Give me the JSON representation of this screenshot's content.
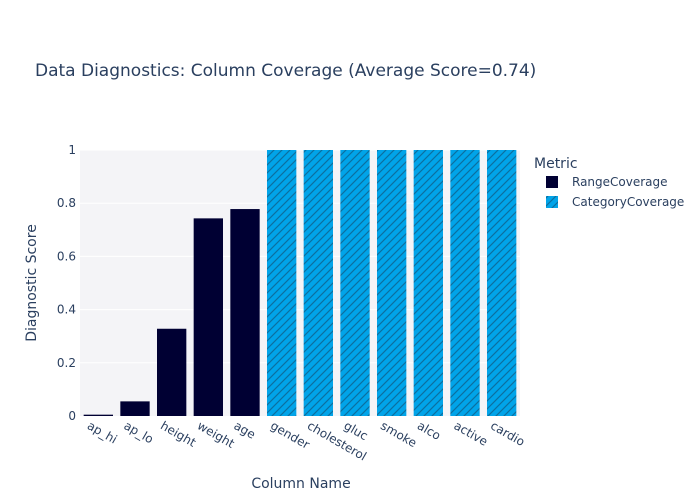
{
  "chart_data": {
    "type": "bar",
    "title": "Data Diagnostics: Column Coverage (Average Score=0.74)",
    "xlabel": "Column Name",
    "ylabel": "Diagnostic Score",
    "ylim": [
      0,
      1
    ],
    "yticks": [
      0,
      0.2,
      0.4,
      0.6,
      0.8,
      1
    ],
    "grid": true,
    "legend_title": "Metric",
    "legend_position": "right",
    "categories": [
      "ap_hi",
      "ap_lo",
      "height",
      "weight",
      "age",
      "gender",
      "cholesterol",
      "gluc",
      "smoke",
      "alco",
      "active",
      "cardio"
    ],
    "series": [
      {
        "name": "RangeCoverage",
        "color": "#000033",
        "pattern": "none",
        "values": [
          0.005,
          0.055,
          0.328,
          0.743,
          0.778,
          null,
          null,
          null,
          null,
          null,
          null,
          null
        ]
      },
      {
        "name": "CategoryCoverage",
        "color": "#01a4e9",
        "pattern": "diagonal-hatch",
        "values": [
          null,
          null,
          null,
          null,
          null,
          1,
          1,
          1,
          1,
          1,
          1,
          1
        ]
      }
    ]
  }
}
